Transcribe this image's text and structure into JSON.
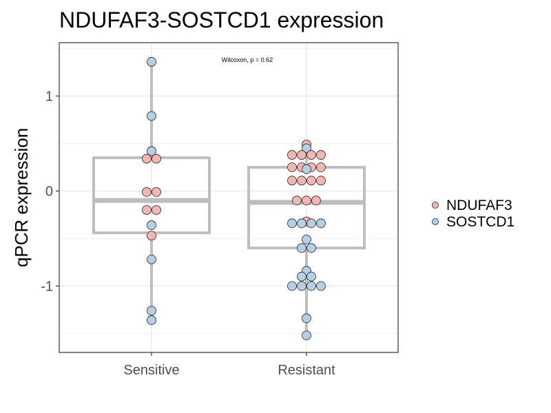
{
  "chart_data": {
    "type": "boxplot",
    "title": "NDUFAF3-SOSTCD1 expression",
    "xlabel": "",
    "ylabel": "qPCR expression",
    "categories": [
      "Sensitive",
      "Resistant"
    ],
    "yticks": [
      1,
      0,
      -1
    ],
    "ytick_labels": [
      "1",
      "0",
      "-1"
    ],
    "ylim": [
      -1.7,
      1.5
    ],
    "grid": true,
    "legend_position": "right",
    "annotation": "Wilcoxon, p = 0.62",
    "box_color": "#bebebe",
    "series": [
      {
        "name": "NDUFAF3",
        "color": "#f4b6b2"
      },
      {
        "name": "SOSTCD1",
        "color": "#b6cfe4"
      }
    ],
    "boxes": [
      {
        "category": "Sensitive",
        "q1": -0.44,
        "median": -0.1,
        "q3": 0.35,
        "whisker_low": -1.36,
        "whisker_high": 1.36
      },
      {
        "category": "Resistant",
        "q1": -0.6,
        "median": -0.12,
        "q3": 0.25,
        "whisker_low": -1.52,
        "whisker_high": 0.49
      }
    ],
    "points": [
      {
        "category": "Sensitive",
        "series": "SOSTCD1",
        "y": 1.36,
        "dodge": 0
      },
      {
        "category": "Sensitive",
        "series": "SOSTCD1",
        "y": 0.79,
        "dodge": 0
      },
      {
        "category": "Sensitive",
        "series": "SOSTCD1",
        "y": 0.42,
        "dodge": 0
      },
      {
        "category": "Sensitive",
        "series": "NDUFAF3",
        "y": 0.34,
        "dodge": -0.5
      },
      {
        "category": "Sensitive",
        "series": "NDUFAF3",
        "y": 0.34,
        "dodge": 0.5
      },
      {
        "category": "Sensitive",
        "series": "NDUFAF3",
        "y": -0.01,
        "dodge": -0.5
      },
      {
        "category": "Sensitive",
        "series": "NDUFAF3",
        "y": -0.01,
        "dodge": 0.5
      },
      {
        "category": "Sensitive",
        "series": "NDUFAF3",
        "y": -0.2,
        "dodge": -0.5
      },
      {
        "category": "Sensitive",
        "series": "NDUFAF3",
        "y": -0.2,
        "dodge": 0.5
      },
      {
        "category": "Sensitive",
        "series": "SOSTCD1",
        "y": -0.36,
        "dodge": 0
      },
      {
        "category": "Sensitive",
        "series": "NDUFAF3",
        "y": -0.47,
        "dodge": 0
      },
      {
        "category": "Sensitive",
        "series": "SOSTCD1",
        "y": -0.72,
        "dodge": 0
      },
      {
        "category": "Sensitive",
        "series": "SOSTCD1",
        "y": -1.26,
        "dodge": 0
      },
      {
        "category": "Sensitive",
        "series": "SOSTCD1",
        "y": -1.36,
        "dodge": 0
      },
      {
        "category": "Resistant",
        "series": "NDUFAF3",
        "y": 0.49,
        "dodge": 0
      },
      {
        "category": "Resistant",
        "series": "SOSTCD1",
        "y": 0.45,
        "dodge": 0
      },
      {
        "category": "Resistant",
        "series": "NDUFAF3",
        "y": 0.38,
        "dodge": -1.5
      },
      {
        "category": "Resistant",
        "series": "NDUFAF3",
        "y": 0.38,
        "dodge": -0.5
      },
      {
        "category": "Resistant",
        "series": "NDUFAF3",
        "y": 0.38,
        "dodge": 0.5
      },
      {
        "category": "Resistant",
        "series": "NDUFAF3",
        "y": 0.38,
        "dodge": 1.5
      },
      {
        "category": "Resistant",
        "series": "NDUFAF3",
        "y": 0.25,
        "dodge": -1.5
      },
      {
        "category": "Resistant",
        "series": "NDUFAF3",
        "y": 0.25,
        "dodge": -0.5
      },
      {
        "category": "Resistant",
        "series": "NDUFAF3",
        "y": 0.25,
        "dodge": 0.5
      },
      {
        "category": "Resistant",
        "series": "NDUFAF3",
        "y": 0.25,
        "dodge": 1.5
      },
      {
        "category": "Resistant",
        "series": "SOSTCD1",
        "y": 0.23,
        "dodge": 0
      },
      {
        "category": "Resistant",
        "series": "NDUFAF3",
        "y": 0.11,
        "dodge": -1.5
      },
      {
        "category": "Resistant",
        "series": "NDUFAF3",
        "y": 0.11,
        "dodge": -0.5
      },
      {
        "category": "Resistant",
        "series": "NDUFAF3",
        "y": 0.11,
        "dodge": 0.5
      },
      {
        "category": "Resistant",
        "series": "NDUFAF3",
        "y": 0.11,
        "dodge": 1.5
      },
      {
        "category": "Resistant",
        "series": "NDUFAF3",
        "y": -0.1,
        "dodge": -1
      },
      {
        "category": "Resistant",
        "series": "NDUFAF3",
        "y": -0.1,
        "dodge": 0
      },
      {
        "category": "Resistant",
        "series": "NDUFAF3",
        "y": -0.1,
        "dodge": 1
      },
      {
        "category": "Resistant",
        "series": "NDUFAF3",
        "y": -0.32,
        "dodge": 0
      },
      {
        "category": "Resistant",
        "series": "SOSTCD1",
        "y": -0.34,
        "dodge": -1.5
      },
      {
        "category": "Resistant",
        "series": "SOSTCD1",
        "y": -0.34,
        "dodge": -0.5
      },
      {
        "category": "Resistant",
        "series": "SOSTCD1",
        "y": -0.34,
        "dodge": 0.5
      },
      {
        "category": "Resistant",
        "series": "SOSTCD1",
        "y": -0.34,
        "dodge": 1.5
      },
      {
        "category": "Resistant",
        "series": "SOSTCD1",
        "y": -0.51,
        "dodge": 0
      },
      {
        "category": "Resistant",
        "series": "SOSTCD1",
        "y": -0.6,
        "dodge": -0.5
      },
      {
        "category": "Resistant",
        "series": "SOSTCD1",
        "y": -0.6,
        "dodge": 0.5
      },
      {
        "category": "Resistant",
        "series": "SOSTCD1",
        "y": -0.84,
        "dodge": 0
      },
      {
        "category": "Resistant",
        "series": "SOSTCD1",
        "y": -0.9,
        "dodge": -0.5
      },
      {
        "category": "Resistant",
        "series": "SOSTCD1",
        "y": -0.9,
        "dodge": 0.5
      },
      {
        "category": "Resistant",
        "series": "SOSTCD1",
        "y": -1.0,
        "dodge": -1.5
      },
      {
        "category": "Resistant",
        "series": "SOSTCD1",
        "y": -1.0,
        "dodge": -0.5
      },
      {
        "category": "Resistant",
        "series": "SOSTCD1",
        "y": -1.0,
        "dodge": 0.5
      },
      {
        "category": "Resistant",
        "series": "SOSTCD1",
        "y": -1.0,
        "dodge": 1.5
      },
      {
        "category": "Resistant",
        "series": "SOSTCD1",
        "y": -1.34,
        "dodge": 0
      },
      {
        "category": "Resistant",
        "series": "SOSTCD1",
        "y": -1.52,
        "dodge": 0
      }
    ]
  }
}
